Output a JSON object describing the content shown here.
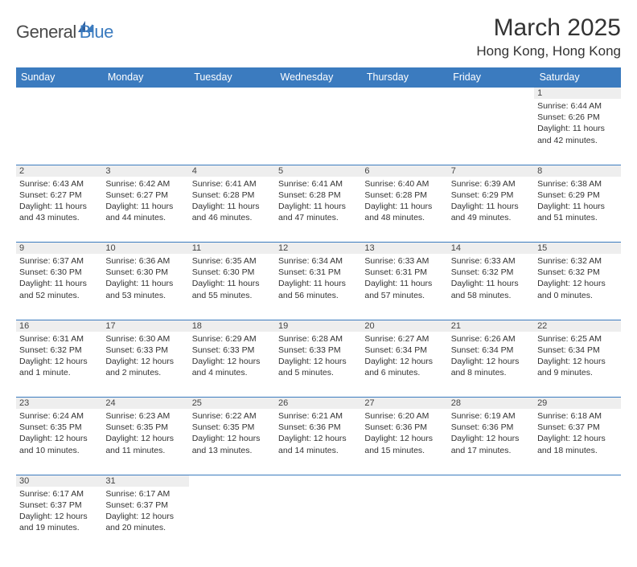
{
  "brand": {
    "part1": "General",
    "part2": "Blue"
  },
  "title": "March 2025",
  "location": "Hong Kong, Hong Kong",
  "colors": {
    "header_bg": "#3b7bbf",
    "header_text": "#ffffff",
    "daynum_bg": "#eeeeee",
    "border": "#3b7bbf",
    "text": "#333333"
  },
  "daynames": [
    "Sunday",
    "Monday",
    "Tuesday",
    "Wednesday",
    "Thursday",
    "Friday",
    "Saturday"
  ],
  "weeks": [
    [
      null,
      null,
      null,
      null,
      null,
      null,
      {
        "n": "1",
        "sr": "Sunrise: 6:44 AM",
        "ss": "Sunset: 6:26 PM",
        "dl": "Daylight: 11 hours and 42 minutes."
      }
    ],
    [
      {
        "n": "2",
        "sr": "Sunrise: 6:43 AM",
        "ss": "Sunset: 6:27 PM",
        "dl": "Daylight: 11 hours and 43 minutes."
      },
      {
        "n": "3",
        "sr": "Sunrise: 6:42 AM",
        "ss": "Sunset: 6:27 PM",
        "dl": "Daylight: 11 hours and 44 minutes."
      },
      {
        "n": "4",
        "sr": "Sunrise: 6:41 AM",
        "ss": "Sunset: 6:28 PM",
        "dl": "Daylight: 11 hours and 46 minutes."
      },
      {
        "n": "5",
        "sr": "Sunrise: 6:41 AM",
        "ss": "Sunset: 6:28 PM",
        "dl": "Daylight: 11 hours and 47 minutes."
      },
      {
        "n": "6",
        "sr": "Sunrise: 6:40 AM",
        "ss": "Sunset: 6:28 PM",
        "dl": "Daylight: 11 hours and 48 minutes."
      },
      {
        "n": "7",
        "sr": "Sunrise: 6:39 AM",
        "ss": "Sunset: 6:29 PM",
        "dl": "Daylight: 11 hours and 49 minutes."
      },
      {
        "n": "8",
        "sr": "Sunrise: 6:38 AM",
        "ss": "Sunset: 6:29 PM",
        "dl": "Daylight: 11 hours and 51 minutes."
      }
    ],
    [
      {
        "n": "9",
        "sr": "Sunrise: 6:37 AM",
        "ss": "Sunset: 6:30 PM",
        "dl": "Daylight: 11 hours and 52 minutes."
      },
      {
        "n": "10",
        "sr": "Sunrise: 6:36 AM",
        "ss": "Sunset: 6:30 PM",
        "dl": "Daylight: 11 hours and 53 minutes."
      },
      {
        "n": "11",
        "sr": "Sunrise: 6:35 AM",
        "ss": "Sunset: 6:30 PM",
        "dl": "Daylight: 11 hours and 55 minutes."
      },
      {
        "n": "12",
        "sr": "Sunrise: 6:34 AM",
        "ss": "Sunset: 6:31 PM",
        "dl": "Daylight: 11 hours and 56 minutes."
      },
      {
        "n": "13",
        "sr": "Sunrise: 6:33 AM",
        "ss": "Sunset: 6:31 PM",
        "dl": "Daylight: 11 hours and 57 minutes."
      },
      {
        "n": "14",
        "sr": "Sunrise: 6:33 AM",
        "ss": "Sunset: 6:32 PM",
        "dl": "Daylight: 11 hours and 58 minutes."
      },
      {
        "n": "15",
        "sr": "Sunrise: 6:32 AM",
        "ss": "Sunset: 6:32 PM",
        "dl": "Daylight: 12 hours and 0 minutes."
      }
    ],
    [
      {
        "n": "16",
        "sr": "Sunrise: 6:31 AM",
        "ss": "Sunset: 6:32 PM",
        "dl": "Daylight: 12 hours and 1 minute."
      },
      {
        "n": "17",
        "sr": "Sunrise: 6:30 AM",
        "ss": "Sunset: 6:33 PM",
        "dl": "Daylight: 12 hours and 2 minutes."
      },
      {
        "n": "18",
        "sr": "Sunrise: 6:29 AM",
        "ss": "Sunset: 6:33 PM",
        "dl": "Daylight: 12 hours and 4 minutes."
      },
      {
        "n": "19",
        "sr": "Sunrise: 6:28 AM",
        "ss": "Sunset: 6:33 PM",
        "dl": "Daylight: 12 hours and 5 minutes."
      },
      {
        "n": "20",
        "sr": "Sunrise: 6:27 AM",
        "ss": "Sunset: 6:34 PM",
        "dl": "Daylight: 12 hours and 6 minutes."
      },
      {
        "n": "21",
        "sr": "Sunrise: 6:26 AM",
        "ss": "Sunset: 6:34 PM",
        "dl": "Daylight: 12 hours and 8 minutes."
      },
      {
        "n": "22",
        "sr": "Sunrise: 6:25 AM",
        "ss": "Sunset: 6:34 PM",
        "dl": "Daylight: 12 hours and 9 minutes."
      }
    ],
    [
      {
        "n": "23",
        "sr": "Sunrise: 6:24 AM",
        "ss": "Sunset: 6:35 PM",
        "dl": "Daylight: 12 hours and 10 minutes."
      },
      {
        "n": "24",
        "sr": "Sunrise: 6:23 AM",
        "ss": "Sunset: 6:35 PM",
        "dl": "Daylight: 12 hours and 11 minutes."
      },
      {
        "n": "25",
        "sr": "Sunrise: 6:22 AM",
        "ss": "Sunset: 6:35 PM",
        "dl": "Daylight: 12 hours and 13 minutes."
      },
      {
        "n": "26",
        "sr": "Sunrise: 6:21 AM",
        "ss": "Sunset: 6:36 PM",
        "dl": "Daylight: 12 hours and 14 minutes."
      },
      {
        "n": "27",
        "sr": "Sunrise: 6:20 AM",
        "ss": "Sunset: 6:36 PM",
        "dl": "Daylight: 12 hours and 15 minutes."
      },
      {
        "n": "28",
        "sr": "Sunrise: 6:19 AM",
        "ss": "Sunset: 6:36 PM",
        "dl": "Daylight: 12 hours and 17 minutes."
      },
      {
        "n": "29",
        "sr": "Sunrise: 6:18 AM",
        "ss": "Sunset: 6:37 PM",
        "dl": "Daylight: 12 hours and 18 minutes."
      }
    ],
    [
      {
        "n": "30",
        "sr": "Sunrise: 6:17 AM",
        "ss": "Sunset: 6:37 PM",
        "dl": "Daylight: 12 hours and 19 minutes."
      },
      {
        "n": "31",
        "sr": "Sunrise: 6:17 AM",
        "ss": "Sunset: 6:37 PM",
        "dl": "Daylight: 12 hours and 20 minutes."
      },
      null,
      null,
      null,
      null,
      null
    ]
  ]
}
